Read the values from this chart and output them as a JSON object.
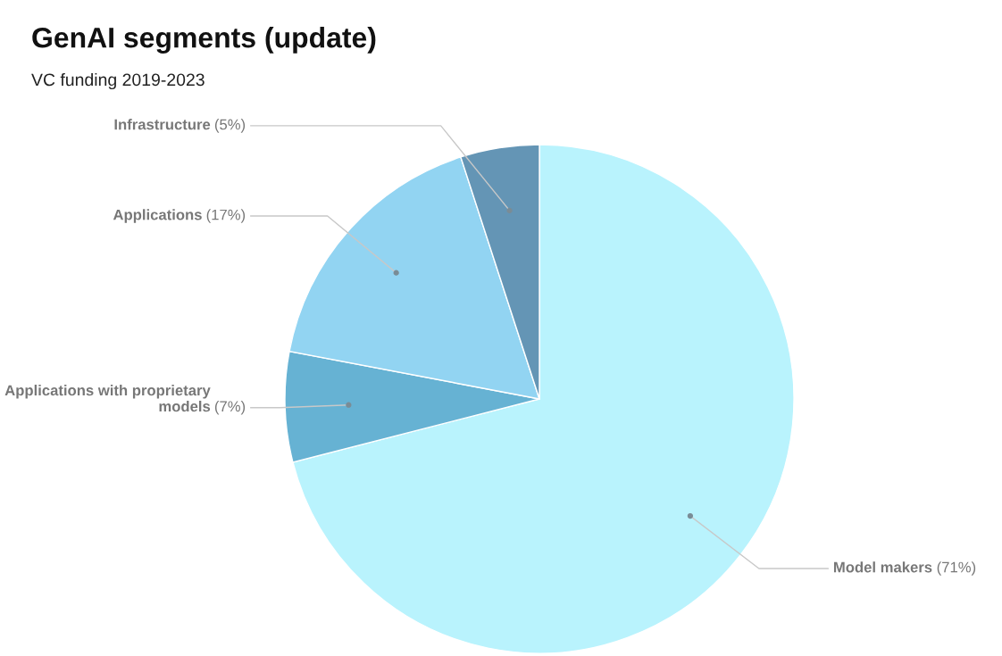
{
  "chart_data": {
    "type": "pie",
    "title": "GenAI segments (update)",
    "subtitle": "VC funding 2019-2023",
    "categories": [
      "Model makers",
      "Applications with proprietary models",
      "Applications",
      "Infrastructure"
    ],
    "values": [
      71,
      7,
      17,
      5
    ],
    "value_labels": [
      "(71%)",
      "(7%)",
      "(17%)",
      "(5%)"
    ],
    "colors": [
      "#b9f3fd",
      "#66b2d3",
      "#92d4f2",
      "#6495b5"
    ]
  }
}
